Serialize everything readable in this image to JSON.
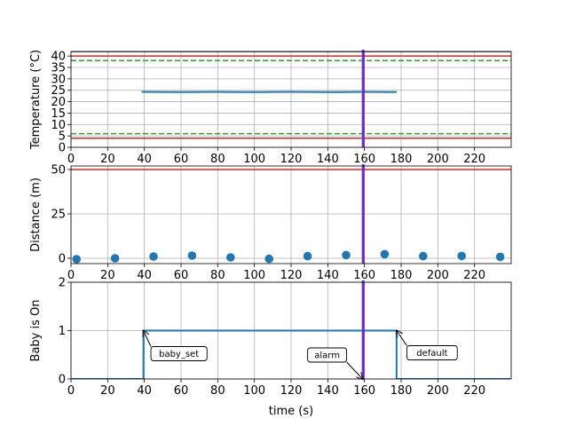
{
  "chart_data": [
    {
      "type": "line",
      "ylabel": "Temperature (°C)",
      "xlim": [
        0,
        240
      ],
      "ylim": [
        0,
        42
      ],
      "xticks": [
        "0",
        "20",
        "40",
        "60",
        "80",
        "100",
        "120",
        "140",
        "160",
        "180",
        "200",
        "220"
      ],
      "yticks": [
        "0",
        "5",
        "10",
        "15",
        "20",
        "25",
        "30",
        "35",
        "40"
      ],
      "grid": true,
      "series": [
        {
          "x": [
            38.5,
            60,
            80,
            100,
            120,
            140,
            160,
            177.5
          ],
          "y": [
            24.3,
            24.2,
            24.3,
            24.2,
            24.3,
            24.2,
            24.3,
            24.2
          ],
          "color": "#1f77b4"
        }
      ],
      "hlines": [
        {
          "y": 42,
          "color": "#000000",
          "style": "solid"
        },
        {
          "y": 40,
          "color": "#d62728",
          "style": "solid"
        },
        {
          "y": 38,
          "color": "#2ca02c",
          "style": "dashed"
        },
        {
          "y": 6,
          "color": "#2ca02c",
          "style": "dashed"
        },
        {
          "y": 4,
          "color": "#d62728",
          "style": "solid"
        }
      ],
      "vlines": [
        {
          "x": 159,
          "color": "#1f77b4"
        },
        {
          "x": 159.5,
          "color": "#9400d3"
        }
      ]
    },
    {
      "type": "scatter",
      "ylabel": "Distance (m)",
      "xlim": [
        0,
        240
      ],
      "ylim": [
        -3,
        52
      ],
      "xticks": [
        "0",
        "20",
        "40",
        "60",
        "80",
        "100",
        "120",
        "140",
        "160",
        "180",
        "200",
        "220"
      ],
      "yticks": [
        "0",
        "25",
        "50"
      ],
      "grid": true,
      "series": [
        {
          "x": [
            3,
            24,
            45,
            66,
            87,
            108,
            129,
            150,
            171,
            192,
            213,
            234
          ],
          "y": [
            -0.5,
            0,
            1,
            1.5,
            0.5,
            -0.3,
            1.2,
            1.8,
            2.3,
            1.2,
            1.3,
            0.8
          ],
          "color": "#1f77b4"
        }
      ],
      "hlines": [
        {
          "y": 50,
          "color": "#d62728",
          "style": "solid"
        }
      ],
      "vlines": [
        {
          "x": 159,
          "color": "#1f77b4"
        },
        {
          "x": 159.5,
          "color": "#9400d3"
        }
      ]
    },
    {
      "type": "line",
      "xlabel": "time (s)",
      "ylabel": "Baby is On",
      "xlim": [
        0,
        240
      ],
      "ylim": [
        0,
        2
      ],
      "xticks": [
        "0",
        "20",
        "40",
        "60",
        "80",
        "100",
        "120",
        "140",
        "160",
        "180",
        "200",
        "220"
      ],
      "yticks": [
        "0",
        "1",
        "2"
      ],
      "grid": true,
      "series": [
        {
          "x": [
            0,
            39.5,
            39.5,
            177.5,
            177.5,
            240
          ],
          "y": [
            0,
            0,
            1,
            1,
            0,
            0
          ],
          "color": "#1f77b4"
        }
      ],
      "vlines": [
        {
          "x": 159,
          "color": "#1f77b4"
        },
        {
          "x": 159.5,
          "color": "#9400d3"
        }
      ],
      "annotations": [
        {
          "text": "baby_set",
          "at": [
            39.5,
            1
          ]
        },
        {
          "text": "alarm",
          "at": [
            159,
            0
          ]
        },
        {
          "text": "default",
          "at": [
            177.5,
            1
          ]
        }
      ]
    }
  ]
}
